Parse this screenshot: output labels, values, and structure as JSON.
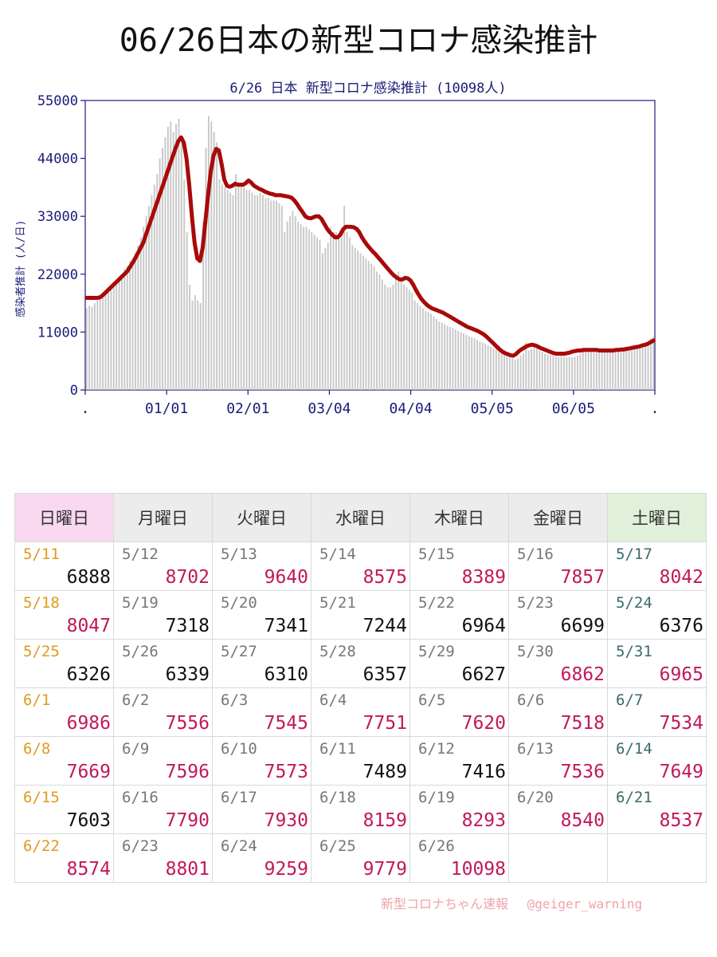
{
  "page_title": "06/26日本の新型コロナ感染推計",
  "chart_data": {
    "type": "bar",
    "title": "6/26 日本 新型コロナ感染推計 (10098人)",
    "ylabel": "感染者推計 (人/日)",
    "ylim": [
      0,
      55000
    ],
    "yticks": [
      "55000",
      "44000",
      "33000",
      "22000",
      "11000",
      "0"
    ],
    "xticks": [
      ".",
      "01/01",
      "02/01",
      "03/04",
      "04/04",
      "05/05",
      "06/05",
      "."
    ],
    "series": [
      {
        "values": [
          15500,
          16000,
          15800,
          16500,
          17000,
          17500,
          18000,
          19000,
          19500,
          20000,
          20500,
          21000,
          21500,
          22000,
          23000,
          23500,
          24500,
          25000,
          26000,
          27500,
          29000,
          31000,
          33000,
          35000,
          37000,
          39000,
          41000,
          44000,
          46000,
          48000,
          50000,
          51000,
          49000,
          50500,
          51500,
          47000,
          40000,
          30000,
          20000,
          17000,
          18000,
          17000,
          16500,
          32000,
          46000,
          52000,
          51000,
          49000,
          47000,
          40000,
          39000,
          38500,
          38000,
          37500,
          37000,
          41000,
          39500,
          39000,
          38500,
          38000,
          38000,
          37500,
          37000,
          37000,
          37500,
          37000,
          36500,
          36500,
          36000,
          36000,
          36000,
          35500,
          35000,
          30000,
          32000,
          33000,
          34000,
          33000,
          32000,
          31500,
          31000,
          31000,
          30500,
          30000,
          29500,
          29000,
          28500,
          26000,
          27000,
          28000,
          31000,
          30000,
          30000,
          29500,
          29000,
          35000,
          30000,
          29000,
          27500,
          27000,
          26500,
          26000,
          25500,
          25000,
          24500,
          24000,
          23500,
          22500,
          22000,
          21000,
          20000,
          19500,
          19500,
          20000,
          22000,
          22500,
          21000,
          20000,
          19500,
          19000,
          18500,
          17000,
          16500,
          16000,
          15500,
          15000,
          14800,
          14500,
          14000,
          13500,
          13000,
          12800,
          12500,
          12200,
          12000,
          11800,
          11500,
          11200,
          11000,
          10800,
          10500,
          10200,
          10000,
          9800,
          9500,
          9200,
          9000,
          8800,
          8500,
          8200,
          8000,
          7800,
          8500,
          7200,
          7000,
          6500,
          6200,
          6000,
          5800,
          6000,
          6500,
          7000,
          9000,
          7500,
          7800,
          8500,
          8000,
          7500,
          7200,
          6900,
          6800,
          6600,
          6500,
          6400,
          6300,
          6600,
          6400,
          6200,
          6300,
          6200,
          6300,
          6500,
          6900,
          7300,
          7300,
          7300,
          7500,
          7500,
          7500,
          7600,
          7400,
          7500,
          7400,
          7500,
          7600,
          7800,
          7600,
          7600,
          7700,
          7800,
          7900,
          8100,
          8300,
          8500,
          8500,
          8600,
          8800,
          9300,
          9800,
          10100
        ]
      },
      {
        "values": [
          17500,
          17500,
          17500,
          17500,
          17500,
          17600,
          18000,
          18500,
          19000,
          19500,
          20000,
          20500,
          21000,
          21500,
          22000,
          22500,
          23300,
          24100,
          25000,
          26000,
          27000,
          28000,
          29500,
          31000,
          32500,
          34000,
          35500,
          37000,
          38500,
          40000,
          41500,
          43000,
          44500,
          46000,
          47300,
          48000,
          47000,
          44000,
          39000,
          33000,
          28000,
          25000,
          24500,
          27000,
          32000,
          37000,
          41500,
          44500,
          45800,
          45500,
          43000,
          40000,
          38800,
          38600,
          38800,
          39200,
          39000,
          39000,
          39000,
          39300,
          39800,
          39400,
          38800,
          38500,
          38200,
          38000,
          37700,
          37500,
          37300,
          37200,
          37000,
          37000,
          37000,
          36900,
          36800,
          36700,
          36500,
          36000,
          35300,
          34500,
          33800,
          33000,
          32700,
          32600,
          32800,
          33000,
          33000,
          32500,
          31600,
          30700,
          30000,
          29500,
          29000,
          29000,
          29500,
          30500,
          31000,
          31000,
          31000,
          30900,
          30600,
          30000,
          29000,
          28200,
          27500,
          26900,
          26300,
          25800,
          25200,
          24600,
          24000,
          23400,
          22800,
          22200,
          21700,
          21300,
          21000,
          21000,
          21300,
          21200,
          20800,
          20000,
          19000,
          18100,
          17300,
          16700,
          16200,
          15800,
          15500,
          15300,
          15100,
          14900,
          14700,
          14400,
          14100,
          13800,
          13500,
          13200,
          12900,
          12600,
          12300,
          12000,
          11800,
          11600,
          11400,
          11200,
          10900,
          10600,
          10200,
          9700,
          9200,
          8700,
          8200,
          7700,
          7300,
          7000,
          6800,
          6600,
          6500,
          6800,
          7300,
          7700,
          8000,
          8300,
          8500,
          8600,
          8500,
          8300,
          8000,
          7800,
          7600,
          7400,
          7200,
          7000,
          6900,
          6900,
          6900,
          6900,
          7000,
          7100,
          7300,
          7400,
          7500,
          7500,
          7600,
          7600,
          7600,
          7600,
          7600,
          7600,
          7500,
          7500,
          7500,
          7500,
          7500,
          7500,
          7600,
          7600,
          7700,
          7700,
          7800,
          7900,
          8000,
          8100,
          8200,
          8300,
          8500,
          8600,
          8800,
          9100,
          9400
        ]
      }
    ],
    "colors": {
      "bars": "#c8c8c8",
      "line": "#a80a0a",
      "axis_text": "#1b1b78",
      "title_text": "#1b1b78"
    }
  },
  "calendar": {
    "headers": [
      "日曜日",
      "月曜日",
      "火曜日",
      "水曜日",
      "木曜日",
      "金曜日",
      "土曜日"
    ],
    "weeks": [
      [
        {
          "date": "5/11",
          "value": "6888",
          "tone": "black"
        },
        {
          "date": "5/12",
          "value": "8702",
          "tone": "red"
        },
        {
          "date": "5/13",
          "value": "9640",
          "tone": "red"
        },
        {
          "date": "5/14",
          "value": "8575",
          "tone": "red"
        },
        {
          "date": "5/15",
          "value": "8389",
          "tone": "red"
        },
        {
          "date": "5/16",
          "value": "7857",
          "tone": "red"
        },
        {
          "date": "5/17",
          "value": "8042",
          "tone": "red"
        }
      ],
      [
        {
          "date": "5/18",
          "value": "8047",
          "tone": "red"
        },
        {
          "date": "5/19",
          "value": "7318",
          "tone": "black"
        },
        {
          "date": "5/20",
          "value": "7341",
          "tone": "black"
        },
        {
          "date": "5/21",
          "value": "7244",
          "tone": "black"
        },
        {
          "date": "5/22",
          "value": "6964",
          "tone": "black"
        },
        {
          "date": "5/23",
          "value": "6699",
          "tone": "black"
        },
        {
          "date": "5/24",
          "value": "6376",
          "tone": "black"
        }
      ],
      [
        {
          "date": "5/25",
          "value": "6326",
          "tone": "black"
        },
        {
          "date": "5/26",
          "value": "6339",
          "tone": "black"
        },
        {
          "date": "5/27",
          "value": "6310",
          "tone": "black"
        },
        {
          "date": "5/28",
          "value": "6357",
          "tone": "black"
        },
        {
          "date": "5/29",
          "value": "6627",
          "tone": "black"
        },
        {
          "date": "5/30",
          "value": "6862",
          "tone": "red"
        },
        {
          "date": "5/31",
          "value": "6965",
          "tone": "red"
        }
      ],
      [
        {
          "date": "6/1",
          "value": "6986",
          "tone": "red"
        },
        {
          "date": "6/2",
          "value": "7556",
          "tone": "red"
        },
        {
          "date": "6/3",
          "value": "7545",
          "tone": "red"
        },
        {
          "date": "6/4",
          "value": "7751",
          "tone": "red"
        },
        {
          "date": "6/5",
          "value": "7620",
          "tone": "red"
        },
        {
          "date": "6/6",
          "value": "7518",
          "tone": "red"
        },
        {
          "date": "6/7",
          "value": "7534",
          "tone": "red"
        }
      ],
      [
        {
          "date": "6/8",
          "value": "7669",
          "tone": "red"
        },
        {
          "date": "6/9",
          "value": "7596",
          "tone": "red"
        },
        {
          "date": "6/10",
          "value": "7573",
          "tone": "red"
        },
        {
          "date": "6/11",
          "value": "7489",
          "tone": "black"
        },
        {
          "date": "6/12",
          "value": "7416",
          "tone": "black"
        },
        {
          "date": "6/13",
          "value": "7536",
          "tone": "red"
        },
        {
          "date": "6/14",
          "value": "7649",
          "tone": "red"
        }
      ],
      [
        {
          "date": "6/15",
          "value": "7603",
          "tone": "black"
        },
        {
          "date": "6/16",
          "value": "7790",
          "tone": "red"
        },
        {
          "date": "6/17",
          "value": "7930",
          "tone": "red"
        },
        {
          "date": "6/18",
          "value": "8159",
          "tone": "red"
        },
        {
          "date": "6/19",
          "value": "8293",
          "tone": "red"
        },
        {
          "date": "6/20",
          "value": "8540",
          "tone": "red"
        },
        {
          "date": "6/21",
          "value": "8537",
          "tone": "red"
        }
      ],
      [
        {
          "date": "6/22",
          "value": "8574",
          "tone": "red"
        },
        {
          "date": "6/23",
          "value": "8801",
          "tone": "red"
        },
        {
          "date": "6/24",
          "value": "9259",
          "tone": "red"
        },
        {
          "date": "6/25",
          "value": "9779",
          "tone": "red"
        },
        {
          "date": "6/26",
          "value": "10098",
          "tone": "red"
        },
        {
          "date": "",
          "value": "",
          "tone": "black"
        },
        {
          "date": "",
          "value": "",
          "tone": "black"
        }
      ]
    ]
  },
  "footer": {
    "source": "新型コロナちゃん速報",
    "handle": "@geiger_warning"
  }
}
